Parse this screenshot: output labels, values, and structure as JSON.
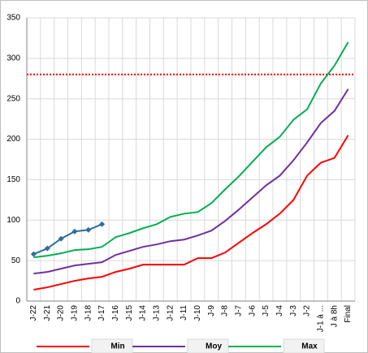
{
  "chart_data": {
    "type": "line",
    "categories": [
      "J-22",
      "J-21",
      "J-20",
      "J-19",
      "J-18",
      "J-17",
      "J-16",
      "J-15",
      "J-14",
      "J-13",
      "J-12",
      "J-11",
      "J-10",
      "J-9",
      "J-8",
      "J-7",
      "J-6",
      "J-5",
      "J-4",
      "J-3",
      "J-2",
      "J-1 à ...",
      "J à 8h",
      "Final"
    ],
    "series": [
      {
        "name": "Min",
        "color": "#ff0000",
        "values": [
          14,
          17,
          21,
          25,
          28,
          30,
          36,
          40,
          45,
          45,
          45,
          45,
          53,
          53,
          60,
          72,
          84,
          95,
          108,
          125,
          155,
          171,
          177,
          205
        ]
      },
      {
        "name": "Moy",
        "color": "#7030a0",
        "values": [
          34,
          36,
          40,
          44,
          46,
          48,
          57,
          62,
          67,
          70,
          74,
          76,
          81,
          87,
          99,
          113,
          128,
          143,
          155,
          174,
          196,
          220,
          235,
          262
        ]
      },
      {
        "name": "Max",
        "color": "#00b050",
        "values": [
          54,
          56,
          59,
          63,
          64,
          67,
          79,
          84,
          90,
          95,
          104,
          108,
          110,
          121,
          138,
          154,
          172,
          190,
          203,
          224,
          237,
          269,
          291,
          320
        ]
      },
      {
        "color": "#2e6d9e",
        "marker": "diamond",
        "values": [
          58,
          65,
          77,
          86,
          88,
          95,
          null,
          null,
          null,
          null,
          null,
          null,
          null,
          null,
          null,
          null,
          null,
          null,
          null,
          null,
          null,
          null,
          null,
          null
        ]
      }
    ],
    "reference_line": {
      "value": 280,
      "color": "#ff0000",
      "style": "dotted"
    },
    "ylim": [
      0,
      350
    ],
    "yticks": [
      0,
      50,
      100,
      150,
      200,
      250,
      300,
      350
    ],
    "grid": true,
    "legend": "bottom"
  }
}
